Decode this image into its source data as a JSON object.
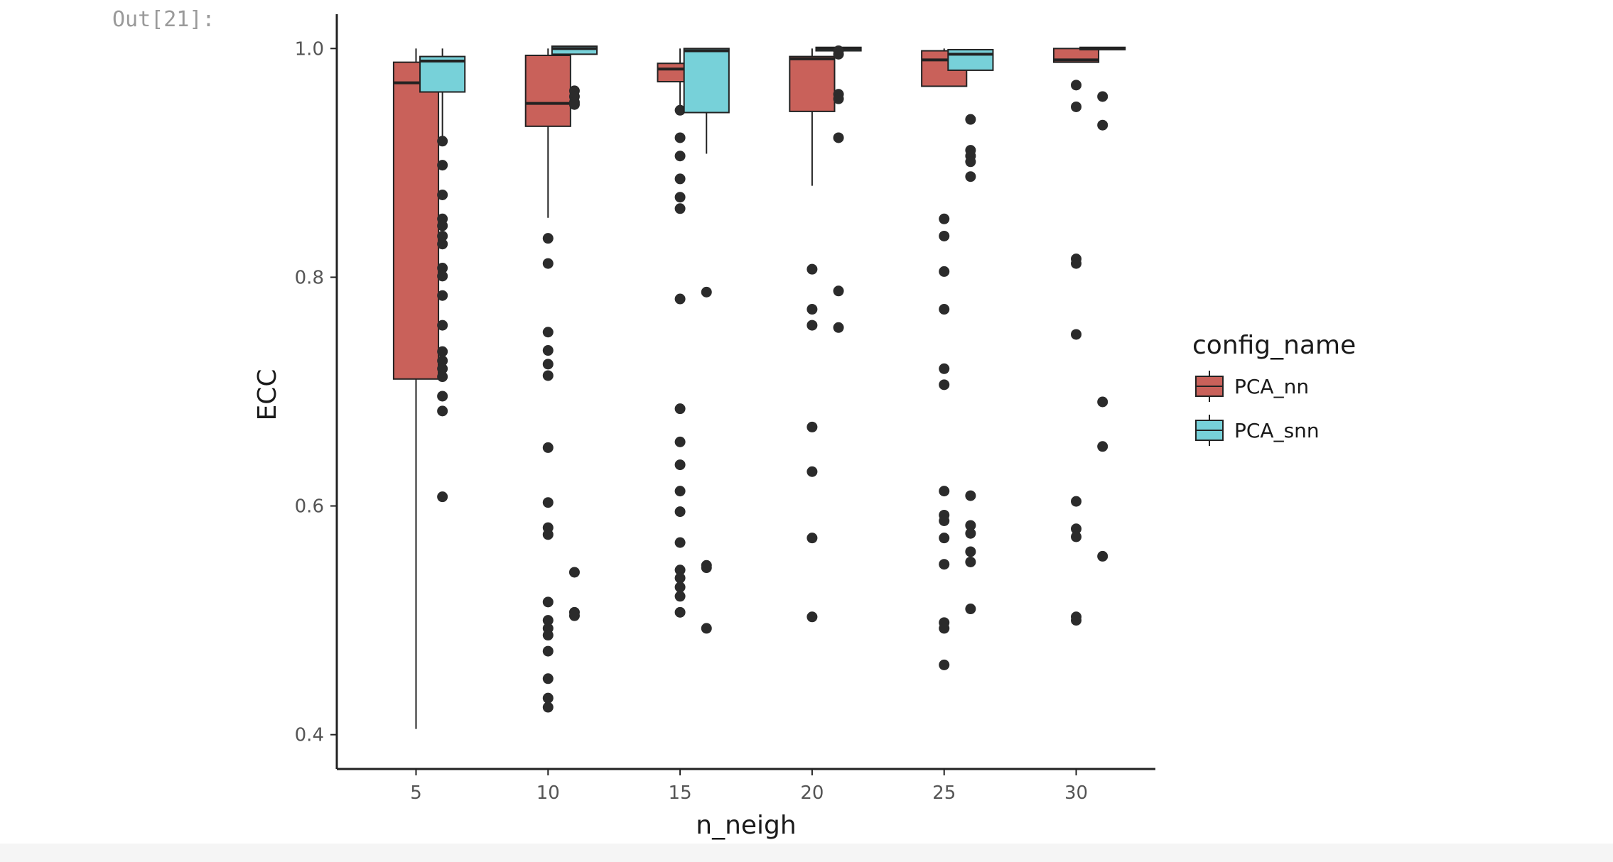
{
  "cell": {
    "prompt": "Out[21]:"
  },
  "chart_data": {
    "type": "box",
    "xlabel": "n_neigh",
    "ylabel": "ECC",
    "x_ticks": [
      5,
      10,
      15,
      20,
      25,
      30
    ],
    "y_ticks": [
      "0.4",
      "0.6",
      "0.8",
      "1.0"
    ],
    "ylim": [
      0.37,
      1.03
    ],
    "xlim": [
      2,
      33
    ],
    "box_width": 1.7,
    "legend": {
      "title": "config_name",
      "placement": "right"
    },
    "series": [
      {
        "name": "PCA_nn",
        "color": "#c9615a",
        "boxes": [
          {
            "x": 5,
            "q1": 0.711,
            "median": 0.97,
            "q3": 0.988,
            "whisker_low": 0.405,
            "whisker_high": 1.0,
            "outliers": []
          },
          {
            "x": 10,
            "q1": 0.932,
            "median": 0.952,
            "q3": 0.994,
            "whisker_low": 0.852,
            "whisker_high": 1.0,
            "outliers": [
              0.834,
              0.812,
              0.752,
              0.736,
              0.724,
              0.714,
              0.651,
              0.603,
              0.581,
              0.575,
              0.516,
              0.5,
              0.493,
              0.487,
              0.473,
              0.449,
              0.432,
              0.424
            ]
          },
          {
            "x": 15,
            "q1": 0.971,
            "median": 0.982,
            "q3": 0.987,
            "whisker_low": 0.946,
            "whisker_high": 1.0,
            "outliers": [
              0.946,
              0.922,
              0.906,
              0.886,
              0.87,
              0.86,
              0.781,
              0.685,
              0.656,
              0.636,
              0.613,
              0.595,
              0.568,
              0.544,
              0.537,
              0.529,
              0.521,
              0.507
            ]
          },
          {
            "x": 20,
            "q1": 0.945,
            "median": 0.991,
            "q3": 0.993,
            "whisker_low": 0.88,
            "whisker_high": 1.0,
            "outliers": [
              0.807,
              0.772,
              0.758,
              0.669,
              0.63,
              0.572,
              0.503
            ]
          },
          {
            "x": 25,
            "q1": 0.967,
            "median": 0.99,
            "q3": 0.998,
            "whisker_low": 0.967,
            "whisker_high": 1.0,
            "outliers": [
              0.851,
              0.836,
              0.805,
              0.772,
              0.72,
              0.706,
              0.613,
              0.592,
              0.587,
              0.572,
              0.549,
              0.498,
              0.493,
              0.461
            ]
          },
          {
            "x": 30,
            "q1": 0.988,
            "median": 0.99,
            "q3": 1.0,
            "whisker_low": 0.988,
            "whisker_high": 1.0,
            "outliers": [
              0.968,
              0.949,
              0.816,
              0.812,
              0.75,
              0.604,
              0.58,
              0.573,
              0.503,
              0.5
            ]
          }
        ]
      },
      {
        "name": "PCA_snn",
        "color": "#77d1d9",
        "boxes": [
          {
            "x": 6,
            "q1": 0.962,
            "median": 0.989,
            "q3": 0.993,
            "whisker_low": 0.922,
            "whisker_high": 1.0,
            "outliers": [
              0.919,
              0.898,
              0.872,
              0.851,
              0.845,
              0.836,
              0.829,
              0.808,
              0.801,
              0.784,
              0.758,
              0.735,
              0.727,
              0.72,
              0.713,
              0.696,
              0.683,
              0.608
            ]
          },
          {
            "x": 11,
            "q1": 0.995,
            "median": 1.0,
            "q3": 1.002,
            "whisker_low": 0.995,
            "whisker_high": 1.002,
            "outliers": [
              0.963,
              0.958,
              0.953,
              0.951,
              0.542,
              0.507,
              0.504
            ]
          },
          {
            "x": 16,
            "q1": 0.944,
            "median": 0.998,
            "q3": 1.0,
            "whisker_low": 0.908,
            "whisker_high": 1.0,
            "outliers": [
              0.787,
              0.548,
              0.546,
              0.493
            ]
          },
          {
            "x": 21,
            "q1": 0.998,
            "median": 1.0,
            "q3": 1.001,
            "whisker_low": 0.998,
            "whisker_high": 1.001,
            "outliers": [
              0.998,
              0.995,
              0.96,
              0.956,
              0.922,
              0.788,
              0.756
            ]
          },
          {
            "x": 26,
            "q1": 0.981,
            "median": 0.995,
            "q3": 0.999,
            "whisker_low": 0.981,
            "whisker_high": 0.999,
            "outliers": [
              0.938,
              0.911,
              0.906,
              0.901,
              0.888,
              0.609,
              0.583,
              0.576,
              0.56,
              0.551,
              0.51
            ]
          },
          {
            "x": 31,
            "q1": 0.999,
            "median": 1.0,
            "q3": 1.001,
            "whisker_low": 0.999,
            "whisker_high": 1.001,
            "outliers": [
              0.958,
              0.933,
              0.691,
              0.652,
              0.556
            ]
          }
        ]
      }
    ]
  }
}
